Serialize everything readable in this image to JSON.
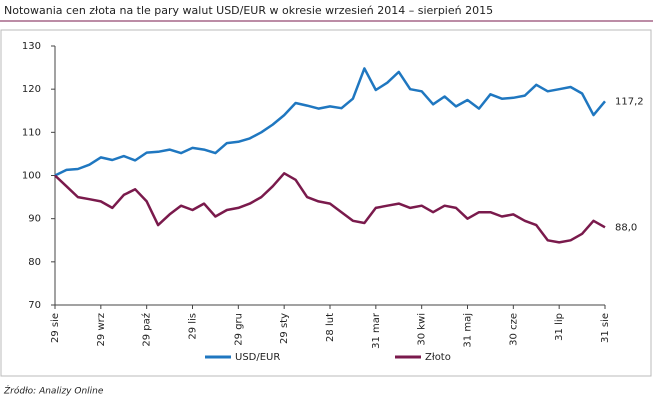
{
  "chart_data": {
    "type": "line",
    "title": "Notowania cen złota na tle pary walut USD/EUR w okresie wrzesień 2014 – sierpień 2015",
    "source": "Źródło: Analizy Online",
    "categories": [
      "29 sie",
      null,
      null,
      null,
      "29 wrz",
      null,
      null,
      null,
      "29 paź",
      null,
      null,
      null,
      "29 lis",
      null,
      null,
      null,
      "29 gru",
      null,
      null,
      null,
      "29 sty",
      null,
      null,
      null,
      "28 lut",
      null,
      null,
      null,
      "31 mar",
      null,
      null,
      null,
      "30 kwi",
      null,
      null,
      null,
      "31 maj",
      null,
      null,
      null,
      "30 cze",
      null,
      null,
      null,
      "31 lip",
      null,
      null,
      null,
      "31 sie"
    ],
    "series": [
      {
        "name": "USD/EUR",
        "color": "#1f77c0",
        "values": [
          100,
          101.3,
          101.5,
          102.5,
          104.2,
          103.6,
          104.5,
          103.5,
          105.3,
          105.5,
          106.0,
          105.2,
          106.4,
          106.0,
          105.2,
          107.5,
          107.8,
          108.6,
          110.0,
          111.8,
          114.0,
          116.8,
          116.2,
          115.5,
          116.0,
          115.6,
          117.8,
          124.8,
          119.8,
          121.5,
          124.0,
          120.0,
          119.5,
          116.5,
          118.3,
          116.0,
          117.5,
          115.5,
          118.8,
          117.8,
          118.0,
          118.5,
          121.0,
          119.5,
          120.0,
          120.5,
          119.0,
          114.0,
          117.2
        ],
        "value_labels": [
          null,
          null,
          null,
          null,
          null,
          null,
          null,
          null,
          null,
          null,
          null,
          null,
          null,
          null,
          null,
          null,
          null,
          null,
          null,
          null,
          null,
          null,
          null,
          null,
          null,
          null,
          null,
          null,
          null,
          null,
          null,
          null,
          null,
          null,
          null,
          null,
          null,
          null,
          null,
          null,
          null,
          null,
          null,
          null,
          null,
          null,
          null,
          null,
          "117,2"
        ]
      },
      {
        "name": "Złoto",
        "color": "#7a1a4c",
        "values": [
          100,
          97.5,
          95.0,
          94.5,
          94.0,
          92.5,
          95.5,
          96.8,
          94.0,
          88.5,
          91.0,
          93.0,
          92.0,
          93.5,
          90.5,
          92.0,
          92.5,
          93.5,
          95.0,
          97.5,
          100.5,
          99.0,
          95.0,
          94.0,
          93.5,
          91.5,
          89.5,
          89.0,
          92.5,
          93.0,
          93.5,
          92.5,
          93.0,
          91.5,
          93.0,
          92.5,
          90.0,
          91.5,
          91.5,
          90.5,
          91.0,
          89.5,
          88.5,
          85.0,
          84.5,
          85.0,
          86.5,
          89.5,
          88.0
        ],
        "value_labels": [
          null,
          null,
          null,
          null,
          null,
          null,
          null,
          null,
          null,
          null,
          null,
          null,
          null,
          null,
          null,
          null,
          null,
          null,
          null,
          null,
          null,
          null,
          null,
          null,
          null,
          null,
          null,
          null,
          null,
          null,
          null,
          null,
          null,
          null,
          null,
          null,
          null,
          null,
          null,
          null,
          null,
          null,
          null,
          null,
          null,
          null,
          null,
          null,
          "88,0"
        ]
      }
    ],
    "ylim": [
      70,
      130
    ],
    "yticks": [
      70,
      80,
      90,
      100,
      110,
      120,
      130
    ],
    "grid": false
  }
}
